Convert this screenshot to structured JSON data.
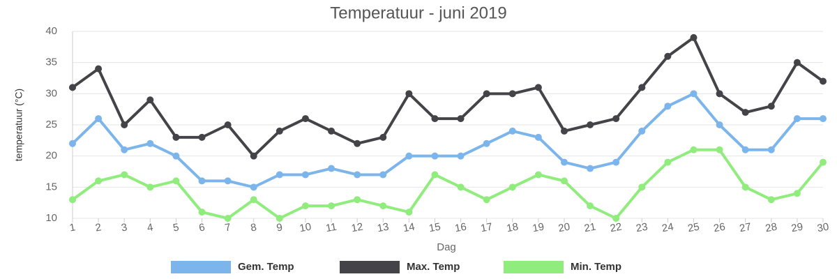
{
  "chart_data": {
    "type": "line",
    "title": "Temperatuur - juni 2019",
    "x_label": "Dag",
    "y_label": "temperatuur (°C)",
    "categories": [
      "1",
      "2",
      "3",
      "4",
      "5",
      "6",
      "7",
      "8",
      "9",
      "10",
      "11",
      "12",
      "13",
      "14",
      "15",
      "16",
      "17",
      "18",
      "19",
      "20",
      "21",
      "22",
      "23",
      "24",
      "25",
      "26",
      "27",
      "28",
      "29",
      "30"
    ],
    "series": [
      {
        "name": "Gem. Temp",
        "color": "#7cb5ec",
        "values": [
          22,
          26,
          21,
          22,
          20,
          16,
          16,
          15,
          17,
          17,
          18,
          17,
          17,
          20,
          20,
          20,
          22,
          24,
          23,
          19,
          18,
          19,
          24,
          28,
          30,
          25,
          21,
          21,
          26,
          26
        ]
      },
      {
        "name": "Max. Temp",
        "color": "#434348",
        "values": [
          31,
          34,
          25,
          29,
          23,
          23,
          25,
          20,
          24,
          26,
          24,
          22,
          23,
          30,
          26,
          26,
          30,
          30,
          31,
          24,
          25,
          26,
          31,
          36,
          39,
          30,
          27,
          28,
          35,
          32
        ]
      },
      {
        "name": "Min. Temp",
        "color": "#90ed7d",
        "values": [
          13,
          16,
          17,
          15,
          16,
          11,
          10,
          13,
          10,
          12,
          12,
          13,
          12,
          11,
          17,
          15,
          13,
          15,
          17,
          16,
          12,
          10,
          15,
          19,
          21,
          21,
          15,
          13,
          14,
          19
        ]
      }
    ],
    "ylim": [
      10,
      40
    ],
    "yticks": [
      10,
      15,
      20,
      25,
      30,
      35,
      40
    ],
    "grid": true,
    "legend": "bottom"
  }
}
